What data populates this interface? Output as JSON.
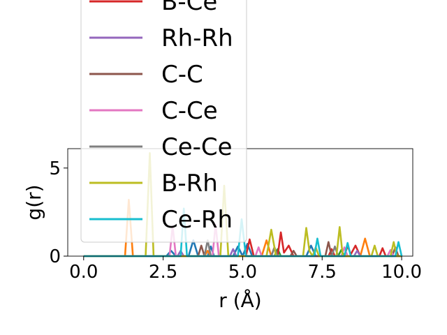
{
  "chart_data": {
    "type": "line",
    "title": "",
    "xlabel": "r (Å)",
    "ylabel": "g(r)",
    "xlim": [
      -0.5,
      10.35
    ],
    "ylim": [
      0,
      6.1
    ],
    "xticks": [
      0.0,
      2.5,
      5.0,
      7.5,
      10.0
    ],
    "xtick_labels": [
      "0.0",
      "2.5",
      "5.0",
      "7.5",
      "10.0"
    ],
    "yticks": [
      0,
      5
    ],
    "ytick_labels": [
      "0",
      "5"
    ],
    "grid": false,
    "legend_position": "top-left, extending above the axes",
    "series": [
      {
        "name": "",
        "color": "#1f77b4",
        "points": [
          [
            0,
            0
          ],
          [
            2.6,
            0
          ],
          [
            2.75,
            0.3
          ],
          [
            2.9,
            0
          ],
          [
            3.3,
            0
          ],
          [
            3.45,
            0.9
          ],
          [
            3.6,
            0
          ],
          [
            3.9,
            0
          ],
          [
            4.0,
            0.55
          ],
          [
            4.1,
            0
          ],
          [
            4.7,
            0
          ],
          [
            4.85,
            0.55
          ],
          [
            5.0,
            0
          ],
          [
            5.15,
            0.7
          ],
          [
            5.3,
            0
          ],
          [
            7.0,
            0
          ],
          [
            7.15,
            0.6
          ],
          [
            7.3,
            0
          ],
          [
            10.0,
            0
          ]
        ]
      },
      {
        "name": "",
        "color": "#ff7f0e",
        "points": [
          [
            0,
            0
          ],
          [
            1.3,
            0
          ],
          [
            1.42,
            3.2
          ],
          [
            1.55,
            0
          ],
          [
            3.8,
            0
          ],
          [
            3.9,
            0.3
          ],
          [
            4.0,
            0
          ],
          [
            5.6,
            0
          ],
          [
            5.75,
            0.9
          ],
          [
            5.9,
            0
          ],
          [
            8.7,
            0
          ],
          [
            8.85,
            1.0
          ],
          [
            9.0,
            0
          ],
          [
            10.0,
            0
          ]
        ]
      },
      {
        "name": "",
        "color": "#2ca02c",
        "points": [
          [
            0,
            0
          ],
          [
            6.0,
            0
          ],
          [
            6.1,
            0.4
          ],
          [
            6.2,
            0
          ],
          [
            8.0,
            0
          ],
          [
            8.1,
            0.35
          ],
          [
            8.2,
            0
          ],
          [
            10.0,
            0
          ]
        ]
      },
      {
        "name": "B-Ce",
        "color": "#d62728",
        "points": [
          [
            0,
            0
          ],
          [
            5.1,
            0
          ],
          [
            5.22,
            0.95
          ],
          [
            5.35,
            0
          ],
          [
            5.9,
            0
          ],
          [
            6.0,
            0.5
          ],
          [
            6.1,
            0
          ],
          [
            6.2,
            1.35
          ],
          [
            6.3,
            0.2
          ],
          [
            6.45,
            0.6
          ],
          [
            6.6,
            0
          ],
          [
            7.7,
            0
          ],
          [
            7.8,
            0.4
          ],
          [
            7.9,
            0
          ],
          [
            8.2,
            0
          ],
          [
            8.3,
            0.6
          ],
          [
            8.4,
            0.1
          ],
          [
            8.55,
            0.6
          ],
          [
            8.7,
            0
          ],
          [
            9.3,
            0
          ],
          [
            9.4,
            0.45
          ],
          [
            9.5,
            0
          ],
          [
            10.0,
            0
          ]
        ]
      },
      {
        "name": "Rh-Rh",
        "color": "#9467bd",
        "points": [
          [
            0,
            0
          ],
          [
            2.95,
            0
          ],
          [
            3.05,
            0.3
          ],
          [
            3.15,
            0
          ],
          [
            4.6,
            0
          ],
          [
            4.7,
            0.4
          ],
          [
            4.8,
            0
          ],
          [
            8.5,
            0
          ],
          [
            8.6,
            0.3
          ],
          [
            8.7,
            0
          ],
          [
            10.0,
            0
          ]
        ]
      },
      {
        "name": "C-C",
        "color": "#8c564b",
        "points": [
          [
            0,
            0
          ],
          [
            3.6,
            0
          ],
          [
            3.7,
            0.6
          ],
          [
            3.8,
            0
          ],
          [
            6.5,
            0
          ],
          [
            6.6,
            0.3
          ],
          [
            6.7,
            0
          ],
          [
            7.6,
            0
          ],
          [
            7.7,
            0.8
          ],
          [
            7.8,
            0
          ],
          [
            9.7,
            0
          ],
          [
            9.8,
            0.5
          ],
          [
            9.9,
            0
          ],
          [
            10.0,
            0
          ]
        ]
      },
      {
        "name": "C-Ce",
        "color": "#e377c2",
        "points": [
          [
            0,
            0
          ],
          [
            2.7,
            0
          ],
          [
            2.8,
            1.7
          ],
          [
            2.9,
            0
          ],
          [
            4.05,
            0
          ],
          [
            4.15,
            1.8
          ],
          [
            4.25,
            0
          ],
          [
            5.4,
            0
          ],
          [
            5.5,
            0.5
          ],
          [
            5.6,
            0
          ],
          [
            8.1,
            0
          ],
          [
            8.2,
            0.5
          ],
          [
            8.3,
            0
          ],
          [
            9.55,
            0
          ],
          [
            9.65,
            0.35
          ],
          [
            9.75,
            0
          ],
          [
            10.0,
            0
          ]
        ]
      },
      {
        "name": "Ce-Ce",
        "color": "#7f7f7f",
        "points": [
          [
            0,
            0
          ],
          [
            3.8,
            0
          ],
          [
            3.9,
            0.9
          ],
          [
            4.0,
            0
          ],
          [
            5.9,
            0
          ],
          [
            6.0,
            0.5
          ],
          [
            6.1,
            0
          ],
          [
            7.8,
            0
          ],
          [
            7.9,
            0.55
          ],
          [
            8.0,
            0
          ],
          [
            10.0,
            0
          ]
        ]
      },
      {
        "name": "B-Rh",
        "color": "#bcbd22",
        "points": [
          [
            0,
            0
          ],
          [
            1.95,
            0
          ],
          [
            2.08,
            5.85
          ],
          [
            2.2,
            0
          ],
          [
            4.3,
            0
          ],
          [
            4.42,
            4.0
          ],
          [
            4.55,
            0
          ],
          [
            5.75,
            0
          ],
          [
            5.9,
            1.5
          ],
          [
            6.05,
            0
          ],
          [
            6.9,
            0
          ],
          [
            7.0,
            1.6
          ],
          [
            7.1,
            0.3
          ],
          [
            7.2,
            0
          ],
          [
            7.3,
            0.5
          ],
          [
            7.4,
            0
          ],
          [
            7.95,
            0
          ],
          [
            8.05,
            1.65
          ],
          [
            8.15,
            0
          ],
          [
            9.05,
            0
          ],
          [
            9.15,
            0.6
          ],
          [
            9.25,
            0
          ],
          [
            9.65,
            0
          ],
          [
            9.75,
            0.8
          ],
          [
            9.85,
            0
          ],
          [
            10.0,
            0
          ]
        ]
      },
      {
        "name": "Ce-Rh",
        "color": "#17becf",
        "points": [
          [
            0,
            0
          ],
          [
            3.05,
            0
          ],
          [
            3.15,
            2.7
          ],
          [
            3.25,
            0
          ],
          [
            4.85,
            0
          ],
          [
            4.97,
            2.1
          ],
          [
            5.1,
            0
          ],
          [
            7.25,
            0
          ],
          [
            7.35,
            1.0
          ],
          [
            7.45,
            0
          ],
          [
            8.2,
            0
          ],
          [
            8.3,
            0.75
          ],
          [
            8.4,
            0
          ],
          [
            9.8,
            0
          ],
          [
            9.9,
            0.8
          ],
          [
            10.0,
            0
          ]
        ]
      }
    ]
  }
}
